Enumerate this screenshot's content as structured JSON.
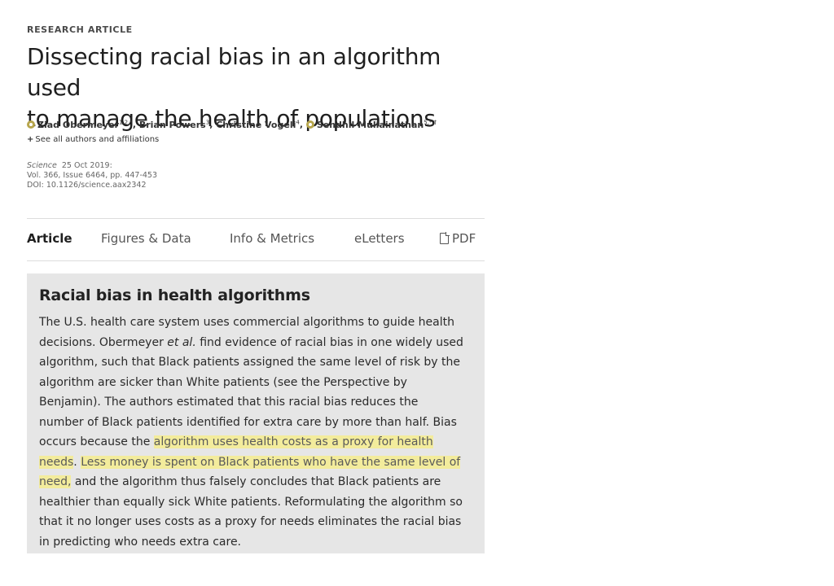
{
  "article": {
    "kicker": "RESEARCH ARTICLE",
    "title_line1": "Dissecting racial bias in an algorithm used",
    "title_line2": "to manage the health of populations",
    "authors": [
      {
        "name": "Ziad Obermeyer",
        "sup": "1,2,*",
        "orcid": true
      },
      {
        "name": "Brian Powers",
        "sup": "3",
        "orcid": false
      },
      {
        "name": "Christine Vogeli",
        "sup": "4",
        "orcid": false
      },
      {
        "name": "Sendhil Mullainathan",
        "sup": "5,*,†",
        "orcid": true
      }
    ],
    "see_all_label": "See all authors and affiliations",
    "journal": "Science",
    "date": "25 Oct 2019:",
    "volume": "Vol. 366, Issue 6464, pp. 447-453",
    "doi": "DOI: 10.1126/science.aax2342"
  },
  "tabs": {
    "article": "Article",
    "figures": "Figures & Data",
    "info": "Info & Metrics",
    "eletters": "eLetters",
    "pdf": "PDF"
  },
  "abstract": {
    "heading": "Racial bias in health algorithms",
    "lines": [
      {
        "text": "The U.S. health care system uses commercial algorithms to guide health"
      },
      {
        "pre": "decisions. Obermeyer ",
        "em": "et al.",
        "post": " find evidence of racial bias in one widely used"
      },
      {
        "text": "algorithm, such that Black patients assigned the same level of risk by the"
      },
      {
        "text": "algorithm are sicker than White patients (see the Perspective by"
      },
      {
        "text": "Benjamin). The authors estimated that this racial bias reduces the"
      },
      {
        "text": "number of Black patients identified for extra care by more than half. Bias"
      },
      {
        "pre": "occurs because the ",
        "hl": "algorithm uses health costs as a proxy for health",
        "post": ""
      },
      {
        "pre": "",
        "hl": "needs",
        "post": ". ",
        "hl2": "Less money is spent on Black patients who have the same level of"
      },
      {
        "pre": "",
        "hl": "need,",
        "post": " and the algorithm thus falsely concludes that Black patients are"
      },
      {
        "text": "healthier than equally sick White patients. Reformulating the algorithm so"
      },
      {
        "text": "that it no longer uses costs as a proxy for needs eliminates the racial bias"
      },
      {
        "text": "in predicting who needs extra care."
      }
    ]
  },
  "colors": {
    "highlight": "#f3ec9c",
    "abstract_bg": "#e6e6e6",
    "orcid": "#b7a64c"
  }
}
